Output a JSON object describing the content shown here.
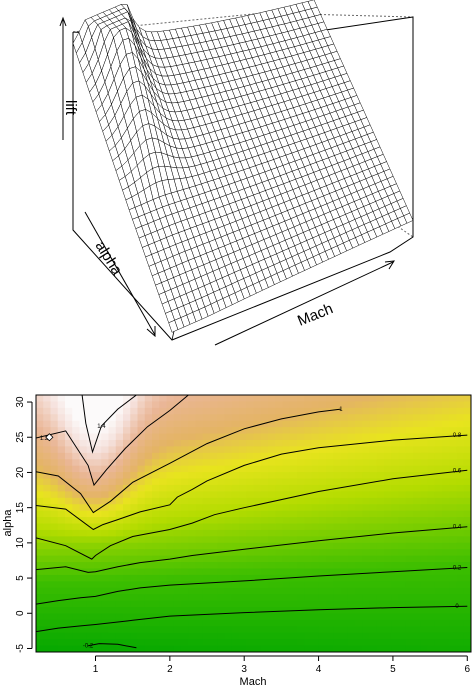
{
  "chart_data": [
    {
      "type": "surface",
      "xlabel": "Mach",
      "ylabel": "alpha",
      "zlabel": "lift",
      "x_range": [
        0.2,
        6
      ],
      "y_range": [
        -5,
        30
      ],
      "surface": "lift rises steeply near Mach 1 at high alpha and decays toward high Mach",
      "box": "on"
    },
    {
      "type": "contour",
      "xlabel": "Mach",
      "ylabel": "alpha",
      "xlim": [
        0.2,
        6.05
      ],
      "ylim": [
        -5.5,
        31
      ],
      "x_ticks": [
        "1",
        "2",
        "3",
        "4",
        "5",
        "6"
      ],
      "y_ticks": [
        "-5",
        "0",
        "5",
        "10",
        "15",
        "20",
        "25",
        "30"
      ],
      "levels": [
        -0.2,
        0,
        0.2,
        0.4,
        0.6,
        0.8,
        1,
        1.2,
        1.4
      ],
      "level_labels": [
        "-0.2",
        "0",
        "0.2",
        "0.4",
        "0.6",
        "0.8",
        "1",
        "1.2",
        "1.4"
      ],
      "contours": [
        {
          "level": -0.2,
          "label": "-0.2",
          "points": [
            [
              0.9,
              -4.6
            ],
            [
              1.05,
              -4.3
            ],
            [
              1.3,
              -4.4
            ],
            [
              1.55,
              -4.9
            ]
          ]
        },
        {
          "level": 0,
          "label": "0",
          "points": [
            [
              0.2,
              -2.6
            ],
            [
              0.5,
              -2.1
            ],
            [
              0.8,
              -1.8
            ],
            [
              1.0,
              -1.6
            ],
            [
              1.5,
              -1.0
            ],
            [
              2.0,
              -0.4
            ],
            [
              3.0,
              0.1
            ],
            [
              4.0,
              0.5
            ],
            [
              5.0,
              0.8
            ],
            [
              6.0,
              1.0
            ]
          ]
        },
        {
          "level": 0.2,
          "label": "0.2",
          "points": [
            [
              0.2,
              1.3
            ],
            [
              0.5,
              1.8
            ],
            [
              0.8,
              2.2
            ],
            [
              1.0,
              2.4
            ],
            [
              1.3,
              3.1
            ],
            [
              1.6,
              3.6
            ],
            [
              2.0,
              4.0
            ],
            [
              2.5,
              4.3
            ],
            [
              3.0,
              4.6
            ],
            [
              4.0,
              5.3
            ],
            [
              5.0,
              5.9
            ],
            [
              6.0,
              6.5
            ]
          ]
        },
        {
          "level": 0.4,
          "label": "0.4",
          "points": [
            [
              0.2,
              6.2
            ],
            [
              0.6,
              6.6
            ],
            [
              0.9,
              5.8
            ],
            [
              1.0,
              5.9
            ],
            [
              1.3,
              6.6
            ],
            [
              1.6,
              7.2
            ],
            [
              2.0,
              7.7
            ],
            [
              2.3,
              8.2
            ],
            [
              3.0,
              9.1
            ],
            [
              4.0,
              10.3
            ],
            [
              5.0,
              11.4
            ],
            [
              6.0,
              12.3
            ]
          ]
        },
        {
          "level": 0.6,
          "label": "0.6",
          "points": [
            [
              0.2,
              10.7
            ],
            [
              0.6,
              9.6
            ],
            [
              0.95,
              7.7
            ],
            [
              1.0,
              8.2
            ],
            [
              1.2,
              9.6
            ],
            [
              1.5,
              10.9
            ],
            [
              2.0,
              11.9
            ],
            [
              2.3,
              12.8
            ],
            [
              2.6,
              14.0
            ],
            [
              3.0,
              15.0
            ],
            [
              4.0,
              17.3
            ],
            [
              5.0,
              19.1
            ],
            [
              6.0,
              20.3
            ]
          ]
        },
        {
          "level": 0.8,
          "label": "0.8",
          "points": [
            [
              0.2,
              15.3
            ],
            [
              0.6,
              14.8
            ],
            [
              0.97,
              11.9
            ],
            [
              1.1,
              12.6
            ],
            [
              1.3,
              13.3
            ],
            [
              1.6,
              14.4
            ],
            [
              2.0,
              15.4
            ],
            [
              2.1,
              16.5
            ],
            [
              2.3,
              17.6
            ],
            [
              2.5,
              18.8
            ],
            [
              3.0,
              21.0
            ],
            [
              3.5,
              22.6
            ],
            [
              4.0,
              23.5
            ],
            [
              5.0,
              24.6
            ],
            [
              6.0,
              25.3
            ]
          ]
        },
        {
          "level": 1,
          "label": "1",
          "points": [
            [
              0.2,
              20.1
            ],
            [
              0.5,
              19.5
            ],
            [
              0.8,
              17.0
            ],
            [
              0.97,
              14.3
            ],
            [
              1.2,
              15.9
            ],
            [
              1.5,
              18.6
            ],
            [
              2.0,
              21.3
            ],
            [
              2.5,
              24.1
            ],
            [
              3.0,
              26.2
            ],
            [
              3.5,
              27.6
            ],
            [
              4.0,
              28.6
            ],
            [
              4.3,
              29.0
            ]
          ]
        },
        {
          "level": 1.2,
          "label": "1.2",
          "points": [
            [
              0.2,
              24.9
            ],
            [
              0.6,
              25.9
            ],
            [
              0.9,
              21.0
            ],
            [
              0.98,
              18.2
            ],
            [
              1.15,
              20.4
            ],
            [
              1.4,
              23.4
            ],
            [
              1.7,
              26.5
            ],
            [
              2.0,
              28.8
            ],
            [
              2.25,
              31.0
            ]
          ]
        },
        {
          "level": 1.4,
          "label": "1.4",
          "points": [
            [
              0.82,
              31.0
            ],
            [
              0.87,
              27.0
            ],
            [
              0.96,
              22.9
            ],
            [
              1.08,
              26.6
            ],
            [
              1.3,
              29.0
            ],
            [
              1.55,
              31.0
            ]
          ]
        }
      ],
      "marker": {
        "type": "diamond",
        "x": 0.38,
        "y": 25.0
      },
      "grid": "off"
    }
  ]
}
